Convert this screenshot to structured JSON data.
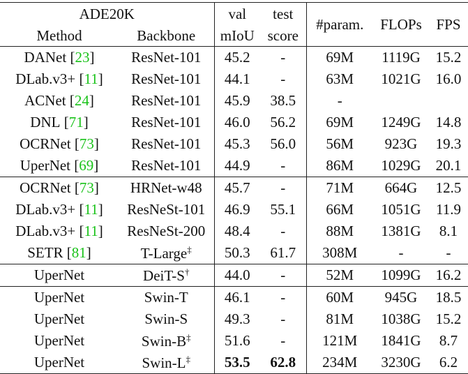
{
  "brackets": [
    "[",
    "]"
  ],
  "header": {
    "dataset": "ADE20K",
    "method": "Method",
    "backbone": "Backbone",
    "val": [
      "val",
      "mIoU"
    ],
    "test": [
      "test",
      "score"
    ],
    "params": "#param.",
    "flops": "FLOPs",
    "fps": "FPS"
  },
  "groups": [
    [
      {
        "method": "DANet",
        "ref": "23",
        "backbone": "ResNet-101",
        "val": "45.2",
        "test": "-",
        "params": "69M",
        "flops": "1119G",
        "fps": "15.2"
      },
      {
        "method": "DLab.v3+",
        "ref": "11",
        "backbone": "ResNet-101",
        "val": "44.1",
        "test": "-",
        "params": "63M",
        "flops": "1021G",
        "fps": "16.0"
      },
      {
        "method": "ACNet",
        "ref": "24",
        "backbone": "ResNet-101",
        "val": "45.9",
        "test": "38.5",
        "params": "-"
      },
      {
        "method": "DNL",
        "ref": "71",
        "backbone": "ResNet-101",
        "val": "46.0",
        "test": "56.2",
        "params": "69M",
        "flops": "1249G",
        "fps": "14.8"
      },
      {
        "method": "OCRNet",
        "ref": "73",
        "backbone": "ResNet-101",
        "val": "45.3",
        "test": "56.0",
        "params": "56M",
        "flops": "923G",
        "fps": "19.3"
      },
      {
        "method": "UperNet",
        "ref": "69",
        "backbone": "ResNet-101",
        "val": "44.9",
        "test": "-",
        "params": "86M",
        "flops": "1029G",
        "fps": "20.1"
      }
    ],
    [
      {
        "method": "OCRNet",
        "ref": "73",
        "backbone": "HRNet-w48",
        "val": "45.7",
        "test": "-",
        "params": "71M",
        "flops": "664G",
        "fps": "12.5"
      },
      {
        "method": "DLab.v3+",
        "ref": "11",
        "backbone": "ResNeSt-101",
        "val": "46.9",
        "test": "55.1",
        "params": "66M",
        "flops": "1051G",
        "fps": "11.9"
      },
      {
        "method": "DLab.v3+",
        "ref": "11",
        "backbone": "ResNeSt-200",
        "val": "48.4",
        "test": "-",
        "params": "88M",
        "flops": "1381G",
        "fps": "8.1"
      },
      {
        "method": "SETR",
        "ref": "81",
        "backbone": "T-Large",
        "sup": "‡",
        "val": "50.3",
        "test": "61.7",
        "params": "308M",
        "flops": "-",
        "fps": "-"
      }
    ],
    [
      {
        "method": "UperNet",
        "backbone": "DeiT-S",
        "sup": "†",
        "val": "44.0",
        "test": "-",
        "params": "52M",
        "flops": "1099G",
        "fps": "16.2"
      }
    ],
    [
      {
        "method": "UperNet",
        "backbone": "Swin-T",
        "val": "46.1",
        "test": "-",
        "params": "60M",
        "flops": "945G",
        "fps": "18.5"
      },
      {
        "method": "UperNet",
        "backbone": "Swin-S",
        "val": "49.3",
        "test": "-",
        "params": "81M",
        "flops": "1038G",
        "fps": "15.2"
      },
      {
        "method": "UperNet",
        "backbone": "Swin-B",
        "sup": "‡",
        "val": "51.6",
        "test": "-",
        "params": "121M",
        "flops": "1841G",
        "fps": "8.7"
      },
      {
        "method": "UperNet",
        "backbone": "Swin-L",
        "sup": "‡",
        "val": "53.5",
        "test": "62.8",
        "params": "234M",
        "flops": "3230G",
        "fps": "6.2",
        "bold": [
          "val",
          "test"
        ]
      }
    ]
  ]
}
